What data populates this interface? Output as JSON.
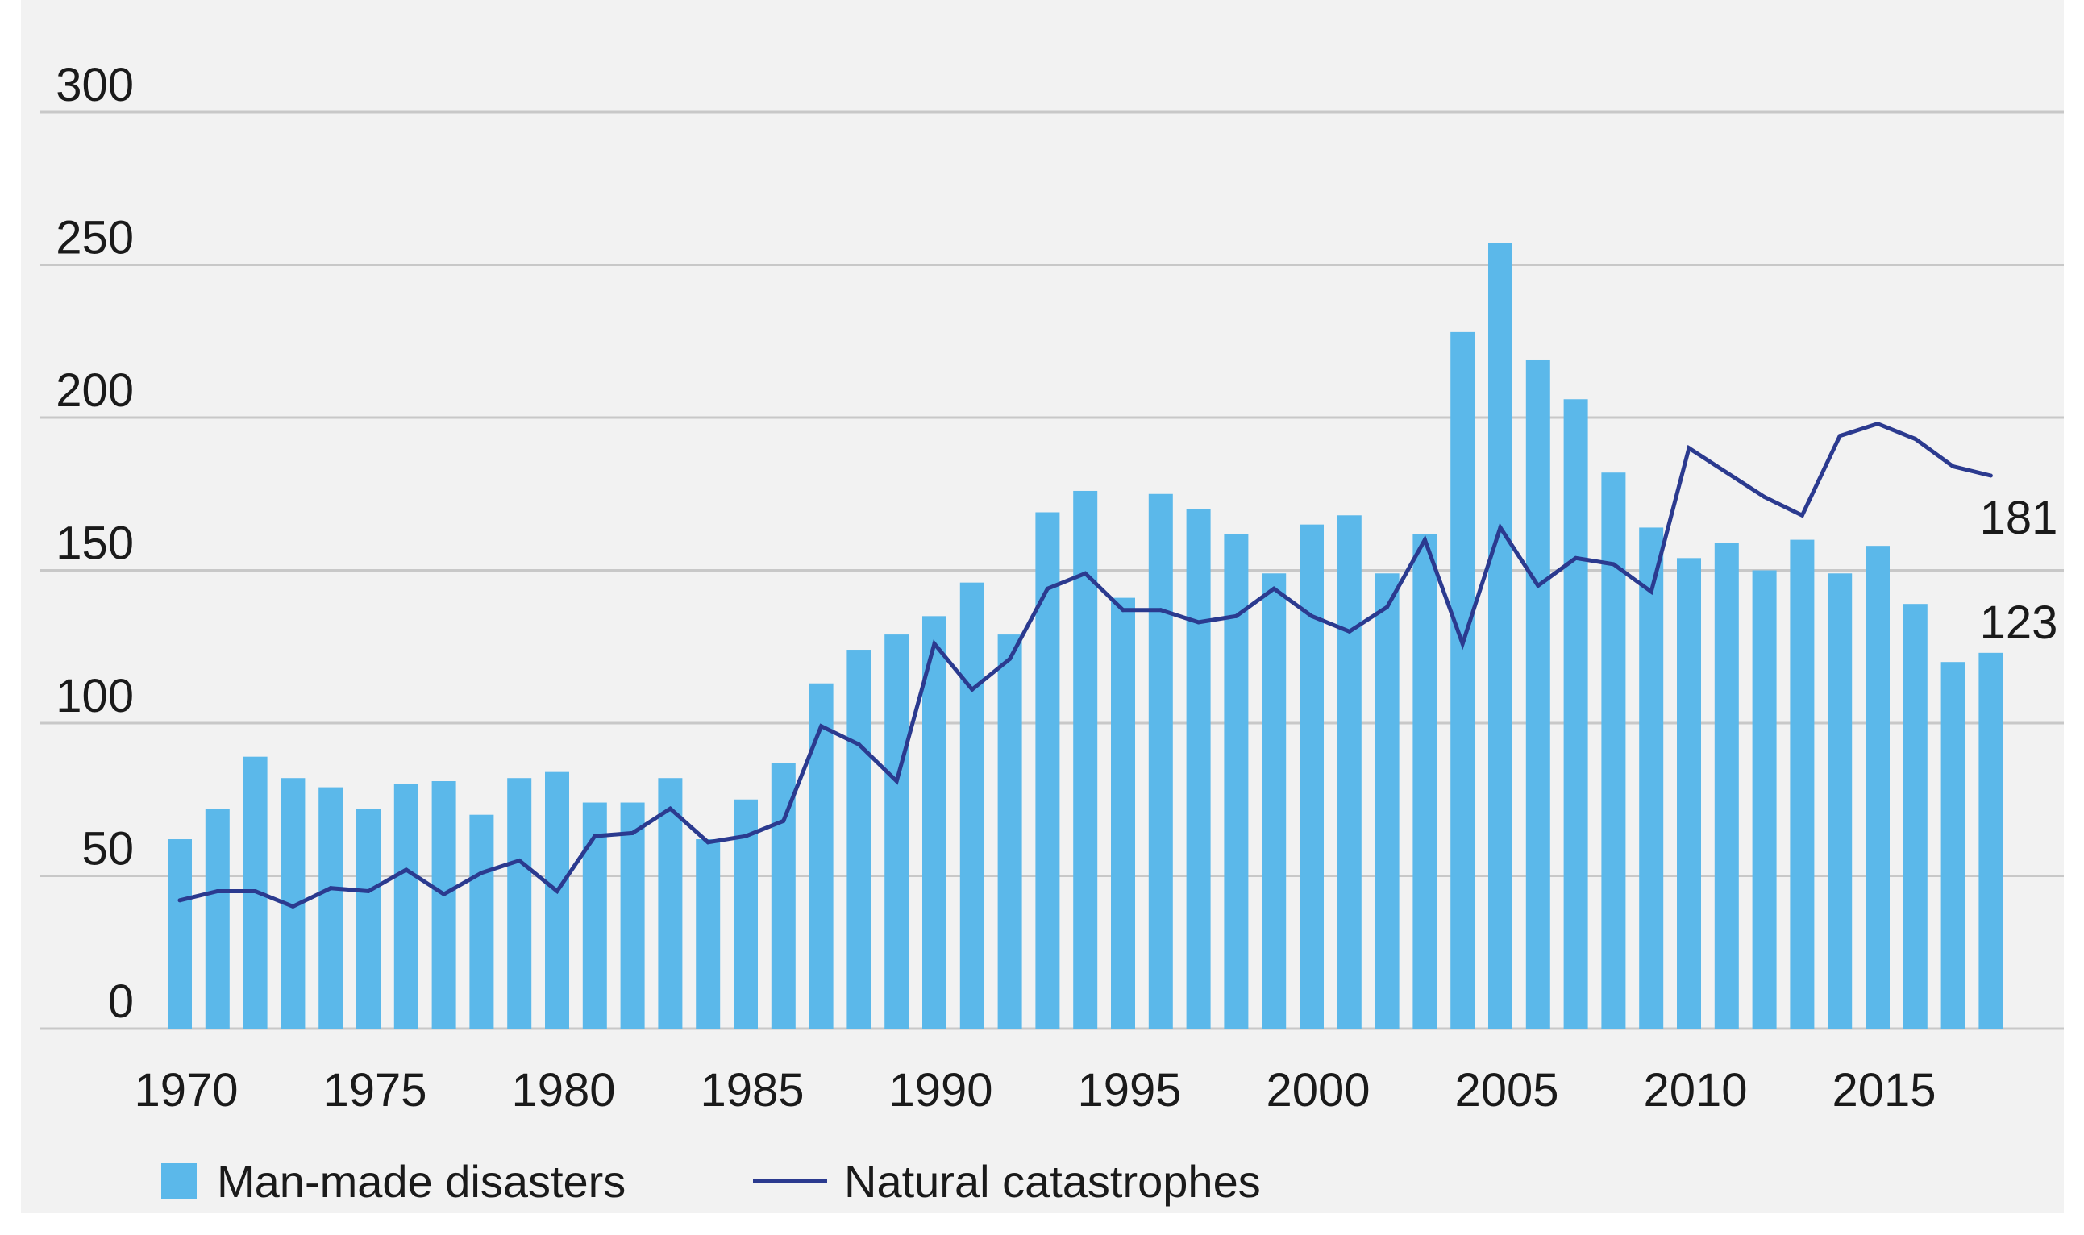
{
  "chart_data": {
    "type": "bar+line",
    "title": "",
    "xlabel": "",
    "ylabel": "",
    "ylim": [
      0,
      300
    ],
    "yticks": [
      0,
      50,
      100,
      150,
      200,
      250,
      300
    ],
    "xticks": [
      1970,
      1975,
      1980,
      1985,
      1990,
      1995,
      2000,
      2005,
      2010,
      2015
    ],
    "grid": true,
    "legend_position": "bottom",
    "colors": {
      "bars": "#5bb8ea",
      "line": "#2b3a8f",
      "grid": "#c8c8c8",
      "background": "#f2f2f2"
    },
    "x": [
      1970,
      1971,
      1972,
      1973,
      1974,
      1975,
      1976,
      1977,
      1978,
      1979,
      1980,
      1981,
      1982,
      1983,
      1984,
      1985,
      1986,
      1987,
      1988,
      1989,
      1990,
      1991,
      1992,
      1993,
      1994,
      1995,
      1996,
      1997,
      1998,
      1999,
      2000,
      2001,
      2002,
      2003,
      2004,
      2005,
      2006,
      2007,
      2008,
      2009,
      2010,
      2011,
      2012,
      2013,
      2014,
      2015,
      2016,
      2017,
      2018
    ],
    "series": [
      {
        "name": "Man-made disasters",
        "kind": "bar",
        "values": [
          62,
          72,
          89,
          82,
          79,
          72,
          80,
          81,
          70,
          82,
          84,
          74,
          74,
          82,
          62,
          75,
          87,
          113,
          124,
          129,
          135,
          146,
          129,
          169,
          176,
          141,
          175,
          170,
          162,
          149,
          165,
          168,
          149,
          162,
          228,
          257,
          219,
          206,
          182,
          164,
          154,
          159,
          150,
          160,
          149,
          158,
          139,
          120,
          123
        ]
      },
      {
        "name": "Natural catastrophes",
        "kind": "line",
        "values": [
          42,
          45,
          45,
          40,
          46,
          45,
          52,
          44,
          51,
          55,
          45,
          63,
          64,
          72,
          61,
          63,
          68,
          99,
          93,
          81,
          126,
          111,
          121,
          144,
          149,
          137,
          137,
          133,
          135,
          144,
          135,
          130,
          138,
          160,
          126,
          164,
          145,
          154,
          152,
          143,
          190,
          182,
          174,
          168,
          194,
          198,
          193,
          184,
          181
        ]
      }
    ],
    "annotations": [
      "181",
      "123"
    ]
  }
}
